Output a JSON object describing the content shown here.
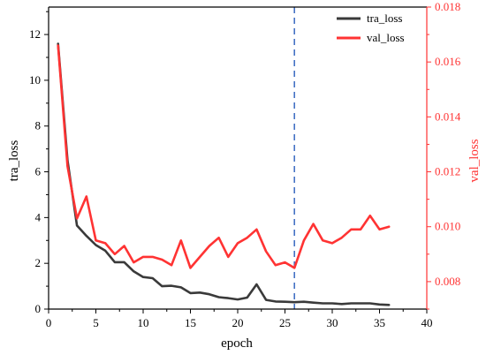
{
  "chart_data": {
    "type": "line",
    "xlabel": "epoch",
    "ylabel_left": "tra_loss",
    "ylabel_right": "val_loss",
    "xlim": [
      0,
      40
    ],
    "x_ticks": [
      0,
      5,
      10,
      15,
      20,
      25,
      30,
      35,
      40
    ],
    "ylim_left": [
      0,
      13.2
    ],
    "y_ticks_left": [
      0,
      2,
      4,
      6,
      8,
      10,
      12
    ],
    "ylim_right": [
      0.007,
      0.018
    ],
    "y_ticks_right": [
      "0.008",
      "0.010",
      "0.012",
      "0.014",
      "0.016",
      "0.018"
    ],
    "y_ticks_right_values": [
      0.008,
      0.01,
      0.012,
      0.014,
      0.016,
      0.018
    ],
    "vline_x": 26,
    "grid": false,
    "legend_position": "top-right",
    "colors": {
      "tra": "#3a3a3a",
      "val": "#ff3333",
      "vline": "#4472c4",
      "right_axis": "#ff3333",
      "axis": "#000000"
    },
    "series": [
      {
        "name": "tra_loss",
        "axis": "left",
        "x": [
          1,
          2,
          3,
          4,
          5,
          6,
          7,
          8,
          9,
          10,
          11,
          12,
          13,
          14,
          15,
          16,
          17,
          18,
          19,
          20,
          21,
          22,
          23,
          24,
          25,
          26,
          27,
          28,
          29,
          30,
          31,
          32,
          33,
          34,
          35,
          36
        ],
        "values": [
          11.6,
          6.5,
          3.65,
          3.2,
          2.8,
          2.55,
          2.05,
          2.05,
          1.65,
          1.4,
          1.35,
          1.0,
          1.02,
          0.95,
          0.7,
          0.72,
          0.65,
          0.52,
          0.48,
          0.42,
          0.5,
          1.08,
          0.4,
          0.33,
          0.32,
          0.3,
          0.32,
          0.28,
          0.25,
          0.25,
          0.22,
          0.25,
          0.25,
          0.25,
          0.2,
          0.18
        ]
      },
      {
        "name": "val_loss",
        "axis": "right",
        "x": [
          1,
          2,
          3,
          4,
          5,
          6,
          7,
          8,
          9,
          10,
          11,
          12,
          13,
          14,
          15,
          16,
          17,
          18,
          19,
          20,
          21,
          22,
          23,
          24,
          25,
          26,
          27,
          28,
          29,
          30,
          31,
          32,
          33,
          34,
          35,
          36
        ],
        "values": [
          0.0166,
          0.0122,
          0.0103,
          0.0111,
          0.0095,
          0.0094,
          0.009,
          0.0093,
          0.0087,
          0.0089,
          0.0089,
          0.0088,
          0.0086,
          0.0095,
          0.0085,
          0.0089,
          0.0093,
          0.0096,
          0.0089,
          0.0094,
          0.0096,
          0.0099,
          0.0091,
          0.0086,
          0.0087,
          0.0085,
          0.0095,
          0.0101,
          0.0095,
          0.0094,
          0.0096,
          0.0099,
          0.0099,
          0.0104,
          0.0099,
          0.01
        ]
      }
    ]
  }
}
